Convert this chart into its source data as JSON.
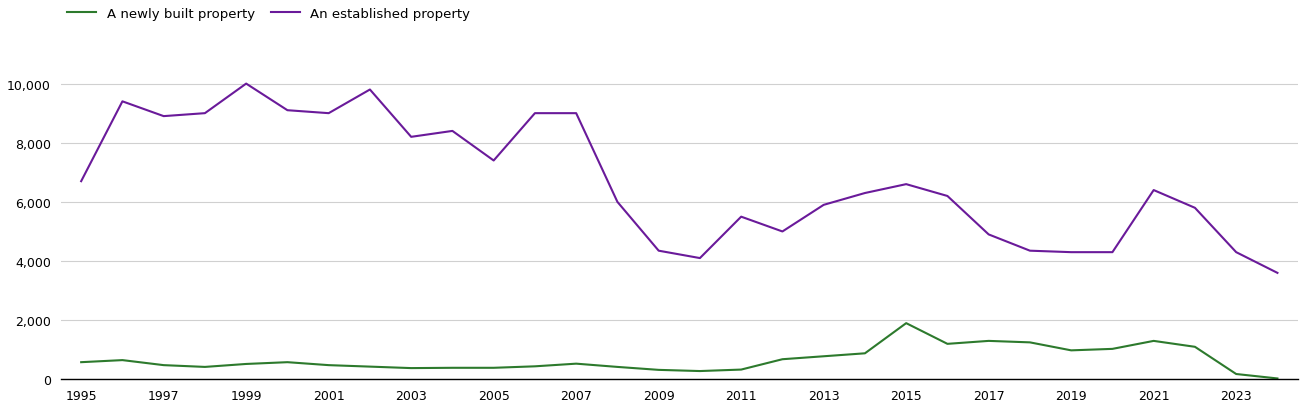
{
  "years": [
    1995,
    1996,
    1997,
    1998,
    1999,
    2000,
    2001,
    2002,
    2003,
    2004,
    2005,
    2006,
    2007,
    2008,
    2009,
    2010,
    2011,
    2012,
    2013,
    2014,
    2015,
    2016,
    2017,
    2018,
    2019,
    2020,
    2021,
    2022,
    2023,
    2024
  ],
  "newly_built": [
    580,
    650,
    480,
    420,
    520,
    580,
    480,
    430,
    380,
    390,
    390,
    440,
    530,
    420,
    320,
    280,
    330,
    680,
    780,
    880,
    1900,
    1200,
    1300,
    1250,
    980,
    1030,
    1300,
    1100,
    180,
    30
  ],
  "established": [
    6700,
    9400,
    8900,
    9000,
    10000,
    9100,
    9000,
    9800,
    8200,
    8400,
    7400,
    9000,
    9000,
    6000,
    4350,
    4100,
    5500,
    5000,
    5900,
    6300,
    6600,
    6200,
    4900,
    4350,
    4300,
    4300,
    6400,
    5800,
    4300,
    3600
  ],
  "newly_built_color": "#2d7a2d",
  "established_color": "#6a1a9a",
  "legend_labels": [
    "A newly built property",
    "An established property"
  ],
  "ylim": [
    0,
    10500
  ],
  "yticks": [
    0,
    2000,
    4000,
    6000,
    8000,
    10000
  ],
  "background_color": "#ffffff",
  "line_width": 1.5,
  "grid_color": "#d0d0d0",
  "xlim_left": 1994.5,
  "xlim_right": 2024.5
}
